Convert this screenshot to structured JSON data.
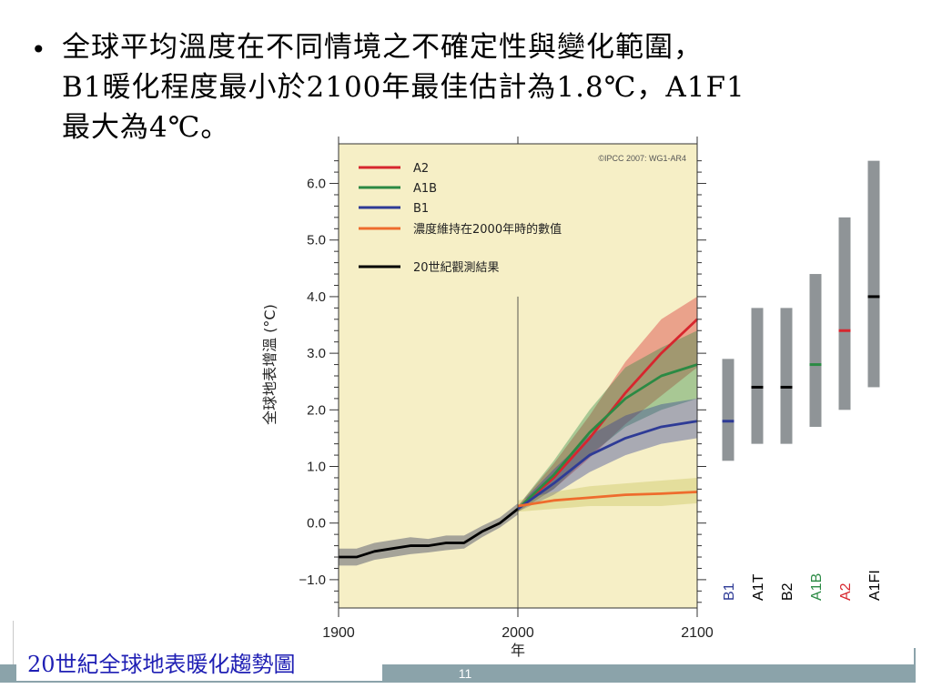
{
  "slide": {
    "bullet": "•",
    "line1": "全球平均溫度在不同情境之不確定性與變化範圍，",
    "line2": "B1暖化程度最小於2100年最佳估計為1.8℃，A1F1",
    "line3": "最大為4℃。",
    "caption": "20世紀全球地表暖化趨勢圖",
    "page_number": "11"
  },
  "colors": {
    "plot_bg": "#f6efc6",
    "A2": "#d7262e",
    "A1B": "#2b8a44",
    "B1": "#2e3b96",
    "constant": "#ee6c2d",
    "observed": "#000000",
    "bar_grey": "#8f9497",
    "footer_bar": "#8ba3aa",
    "caption_text": "#1f1fb4"
  },
  "chart_data": {
    "type": "line",
    "copyright": "©IPCC 2007: WG1-AR4",
    "ylabel": "全球地表增溫 (°C)",
    "xlabel": "年",
    "xlim": [
      1900,
      2100
    ],
    "ylim": [
      -1.5,
      6.7
    ],
    "x_ticks": [
      "1900",
      "2000",
      "2100"
    ],
    "y_ticks": [
      "6.0",
      "5.0",
      "4.0",
      "3.0",
      "2.0",
      "1.0",
      "0.0",
      "−1.0"
    ],
    "y_tick_values": [
      6,
      5,
      4,
      3,
      2,
      1,
      0,
      -1
    ],
    "marker_year": 2000,
    "series": [
      {
        "name": "A2",
        "key": "A2",
        "x": [
          2000,
          2020,
          2040,
          2060,
          2080,
          2100
        ],
        "y": [
          0.25,
          0.8,
          1.5,
          2.3,
          3.0,
          3.6
        ],
        "lo": [
          0.2,
          0.6,
          1.15,
          1.75,
          2.25,
          2.75
        ],
        "hi": [
          0.3,
          1.05,
          1.9,
          2.85,
          3.6,
          4.0
        ]
      },
      {
        "name": "A1B",
        "key": "A1B",
        "x": [
          2000,
          2020,
          2040,
          2060,
          2080,
          2100
        ],
        "y": [
          0.25,
          0.85,
          1.6,
          2.2,
          2.6,
          2.8
        ],
        "lo": [
          0.2,
          0.6,
          1.2,
          1.7,
          2.0,
          2.2
        ],
        "hi": [
          0.3,
          1.1,
          2.0,
          2.75,
          3.1,
          3.4
        ]
      },
      {
        "name": "B1",
        "key": "B1",
        "x": [
          2000,
          2020,
          2040,
          2060,
          2080,
          2100
        ],
        "y": [
          0.25,
          0.7,
          1.2,
          1.5,
          1.7,
          1.8
        ],
        "lo": [
          0.2,
          0.5,
          0.9,
          1.2,
          1.4,
          1.5
        ],
        "hi": [
          0.3,
          0.95,
          1.55,
          1.9,
          2.1,
          2.2
        ]
      },
      {
        "name": "濃度維持在2000年時的數值",
        "key": "constant",
        "x": [
          2000,
          2020,
          2040,
          2060,
          2080,
          2100
        ],
        "y": [
          0.3,
          0.4,
          0.45,
          0.5,
          0.52,
          0.55
        ],
        "lo": [
          0.2,
          0.25,
          0.3,
          0.3,
          0.3,
          0.35
        ],
        "hi": [
          0.4,
          0.55,
          0.65,
          0.7,
          0.75,
          0.8
        ]
      },
      {
        "name": "20世紀觀測結果",
        "key": "observed",
        "x": [
          1900,
          1910,
          1920,
          1930,
          1940,
          1950,
          1960,
          1970,
          1980,
          1990,
          2000
        ],
        "y": [
          -0.6,
          -0.6,
          -0.5,
          -0.45,
          -0.4,
          -0.4,
          -0.35,
          -0.35,
          -0.15,
          0.0,
          0.25
        ],
        "lo": [
          -0.75,
          -0.75,
          -0.65,
          -0.6,
          -0.55,
          -0.52,
          -0.48,
          -0.45,
          -0.25,
          -0.08,
          0.15
        ],
        "hi": [
          -0.45,
          -0.45,
          -0.35,
          -0.3,
          -0.25,
          -0.28,
          -0.22,
          -0.22,
          -0.05,
          0.1,
          0.35
        ]
      }
    ],
    "scenario_bars": [
      {
        "label": "B1",
        "low": 1.1,
        "high": 2.9,
        "best": 1.8,
        "color": "#2e3b96",
        "label_color": "#2e3b96"
      },
      {
        "label": "A1T",
        "low": 1.4,
        "high": 3.8,
        "best": 2.4,
        "color": "#000000",
        "label_color": "#000000"
      },
      {
        "label": "B2",
        "low": 1.4,
        "high": 3.8,
        "best": 2.4,
        "color": "#000000",
        "label_color": "#000000"
      },
      {
        "label": "A1B",
        "low": 1.7,
        "high": 4.4,
        "best": 2.8,
        "color": "#2b8a44",
        "label_color": "#2b8a44"
      },
      {
        "label": "A2",
        "low": 2.0,
        "high": 5.4,
        "best": 3.4,
        "color": "#d7262e",
        "label_color": "#d7262e"
      },
      {
        "label": "A1FI",
        "low": 2.4,
        "high": 6.4,
        "best": 4.0,
        "color": "#000000",
        "label_color": "#000000"
      }
    ]
  }
}
